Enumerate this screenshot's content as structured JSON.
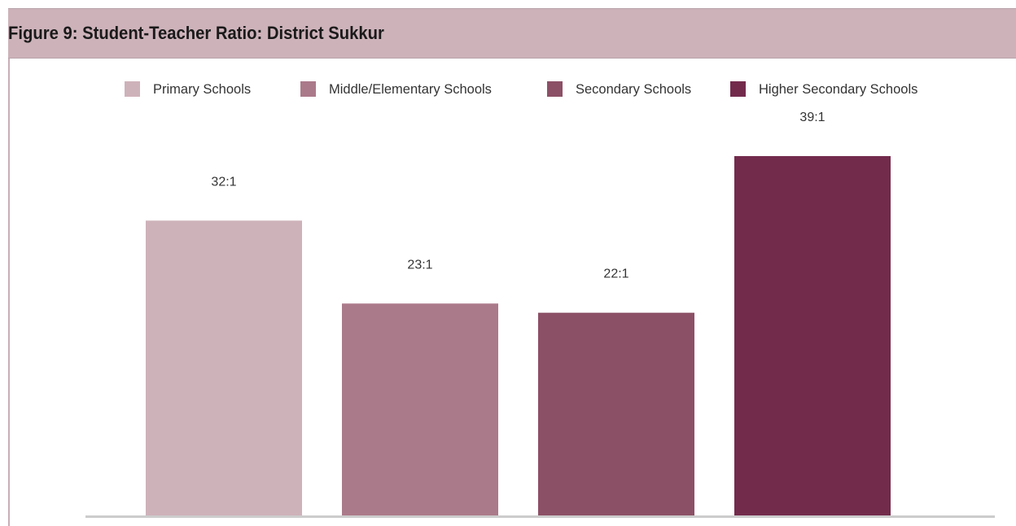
{
  "title": "Figure 9: Student-Teacher Ratio: District Sukkur",
  "colors": {
    "header_bg": "#cdb2ba",
    "rule": "#c9aeb6",
    "axis": "#cccccc",
    "label_text": "#333333"
  },
  "chart_data": {
    "type": "bar",
    "categories": [
      "Primary Schools",
      "Middle/Elementary Schools",
      "Secondary Schools",
      "Higher Secondary Schools"
    ],
    "values": [
      32,
      23,
      22,
      39
    ],
    "data_labels": [
      "32:1",
      "23:1",
      "22:1",
      "39:1"
    ],
    "colors": [
      "#ceb2ba",
      "#ab7a8a",
      "#8c5066",
      "#732b4c"
    ],
    "title": "Figure 9: Student-Teacher Ratio: District Sukkur",
    "xlabel": "",
    "ylabel": "",
    "ylim": [
      0,
      45
    ],
    "grid": false,
    "legend": "top"
  }
}
